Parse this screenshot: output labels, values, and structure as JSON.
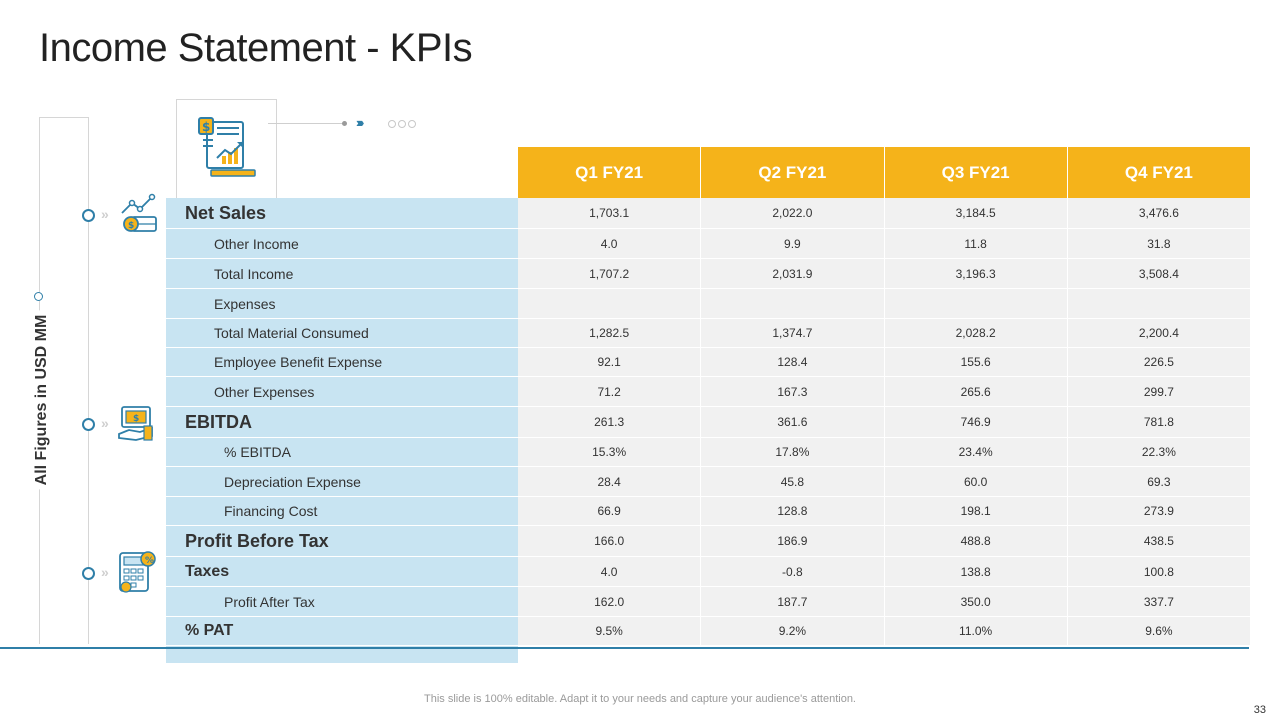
{
  "title": "Income Statement - KPIs",
  "side_label": "All Figures in USD MM",
  "columns": [
    "Q1 FY21",
    "Q2 FY21",
    "Q3 FY21",
    "Q4 FY21"
  ],
  "rows": [
    {
      "label": "Net Sales",
      "style": "main",
      "values": [
        "1,703.1",
        "2,022.0",
        "3,184.5",
        "3,476.6"
      ]
    },
    {
      "label": "Other Income",
      "style": "sub",
      "values": [
        "4.0",
        "9.9",
        "11.8",
        "31.8"
      ]
    },
    {
      "label": "Total Income",
      "style": "sub",
      "values": [
        "1,707.2",
        "2,031.9",
        "3,196.3",
        "3,508.4"
      ]
    },
    {
      "label": "Expenses",
      "style": "sub",
      "values": [
        "",
        "",
        "",
        ""
      ]
    },
    {
      "label": "Total Material Consumed",
      "style": "sub",
      "values": [
        "1,282.5",
        "1,374.7",
        "2,028.2",
        "2,200.4"
      ]
    },
    {
      "label": "Employee Benefit Expense",
      "style": "sub",
      "values": [
        "92.1",
        "128.4",
        "155.6",
        "226.5"
      ]
    },
    {
      "label": "Other Expenses",
      "style": "sub",
      "values": [
        "71.2",
        "167.3",
        "265.6",
        "299.7"
      ]
    },
    {
      "label": "EBITDA",
      "style": "main",
      "values": [
        "261.3",
        "361.6",
        "746.9",
        "781.8"
      ]
    },
    {
      "label": "% EBITDA",
      "style": "sub2",
      "values": [
        "15.3%",
        "17.8%",
        "23.4%",
        "22.3%"
      ]
    },
    {
      "label": "Depreciation Expense",
      "style": "sub2",
      "values": [
        "28.4",
        "45.8",
        "60.0",
        "69.3"
      ]
    },
    {
      "label": "Financing Cost",
      "style": "sub2",
      "values": [
        "66.9",
        "128.8",
        "198.1",
        "273.9"
      ]
    },
    {
      "label": "Profit Before Tax",
      "style": "main",
      "values": [
        "166.0",
        "186.9",
        "488.8",
        "438.5"
      ]
    },
    {
      "label": "Taxes",
      "style": "taxes",
      "values": [
        "4.0",
        "-0.8",
        "138.8",
        "100.8"
      ]
    },
    {
      "label": "Profit After Tax",
      "style": "sub2",
      "values": [
        "162.0",
        "187.7",
        "350.0",
        "337.7"
      ]
    },
    {
      "label": "% PAT",
      "style": "main-sm",
      "values": [
        "9.5%",
        "9.2%",
        "11.0%",
        "9.6%"
      ]
    }
  ],
  "icons": {
    "header": "financial-report-icon",
    "net_sales": "money-growth-icon",
    "ebitda": "cash-hand-icon",
    "tax": "calculator-icon"
  },
  "colors": {
    "header_bg": "#f5b31a",
    "label_bg": "#c8e4f2",
    "cell_bg": "#f1f1f1",
    "accent": "#2f7fa8"
  },
  "footer": "This slide is 100% editable. Adapt it to your needs and capture your audience's attention.",
  "page_number": "33"
}
